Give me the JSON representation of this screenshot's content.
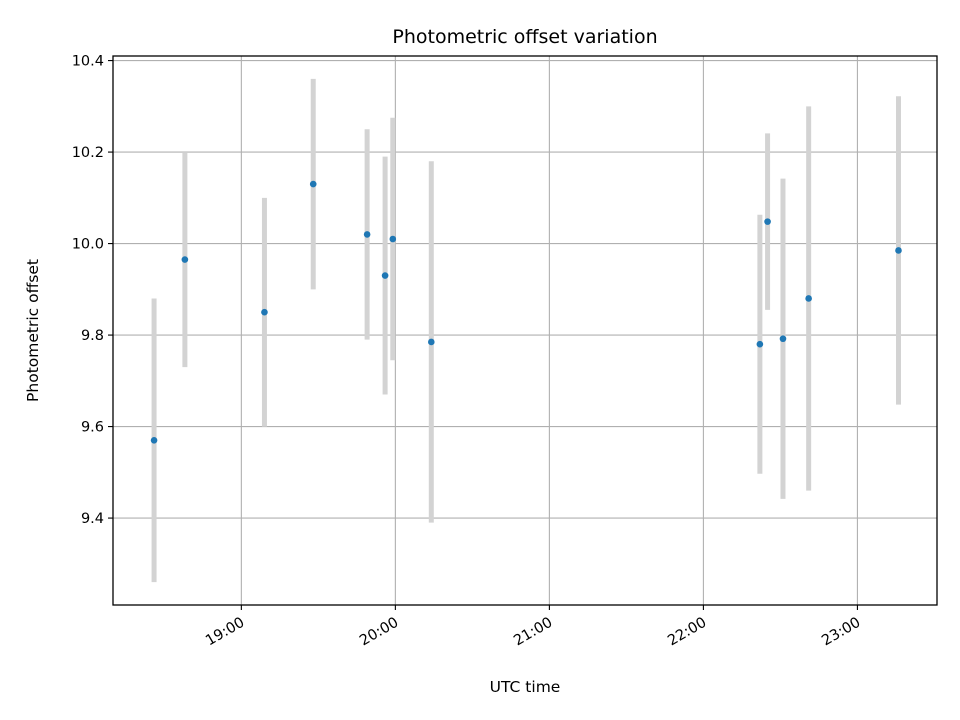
{
  "chart_data": {
    "type": "scatter",
    "title": "Photometric offset variation",
    "xlabel": "UTC time",
    "ylabel": "Photometric offset",
    "x_tick_labels": [
      "19:00",
      "20:00",
      "21:00",
      "22:00",
      "23:00"
    ],
    "y_tick_labels": [
      "9.4",
      "9.6",
      "9.8",
      "10.0",
      "10.2",
      "10.4"
    ],
    "xlim": [
      "18:10",
      "23:31"
    ],
    "ylim": [
      9.21,
      10.41
    ],
    "grid": true,
    "legend": false,
    "colors": {
      "point": "#1f77b4",
      "errorbar": "#d3d3d3",
      "grid": "#b0b0b0"
    },
    "series": [
      {
        "points": [
          {
            "x": "18:26",
            "y": 9.57,
            "err": 0.31
          },
          {
            "x": "18:38",
            "y": 9.965,
            "err": 0.235
          },
          {
            "x": "19:09",
            "y": 9.85,
            "err": 0.25
          },
          {
            "x": "19:28",
            "y": 10.13,
            "err": 0.23
          },
          {
            "x": "19:49",
            "y": 10.02,
            "err": 0.23
          },
          {
            "x": "19:56",
            "y": 9.93,
            "err": 0.26
          },
          {
            "x": "19:59",
            "y": 10.01,
            "err": 0.265
          },
          {
            "x": "20:14",
            "y": 9.785,
            "err": 0.395
          },
          {
            "x": "22:22",
            "y": 9.78,
            "err": 0.283
          },
          {
            "x": "22:25",
            "y": 10.048,
            "err": 0.193
          },
          {
            "x": "22:31",
            "y": 9.792,
            "err": 0.35
          },
          {
            "x": "22:41",
            "y": 9.88,
            "err": 0.42
          },
          {
            "x": "23:16",
            "y": 9.985,
            "err": 0.337
          }
        ]
      }
    ]
  }
}
